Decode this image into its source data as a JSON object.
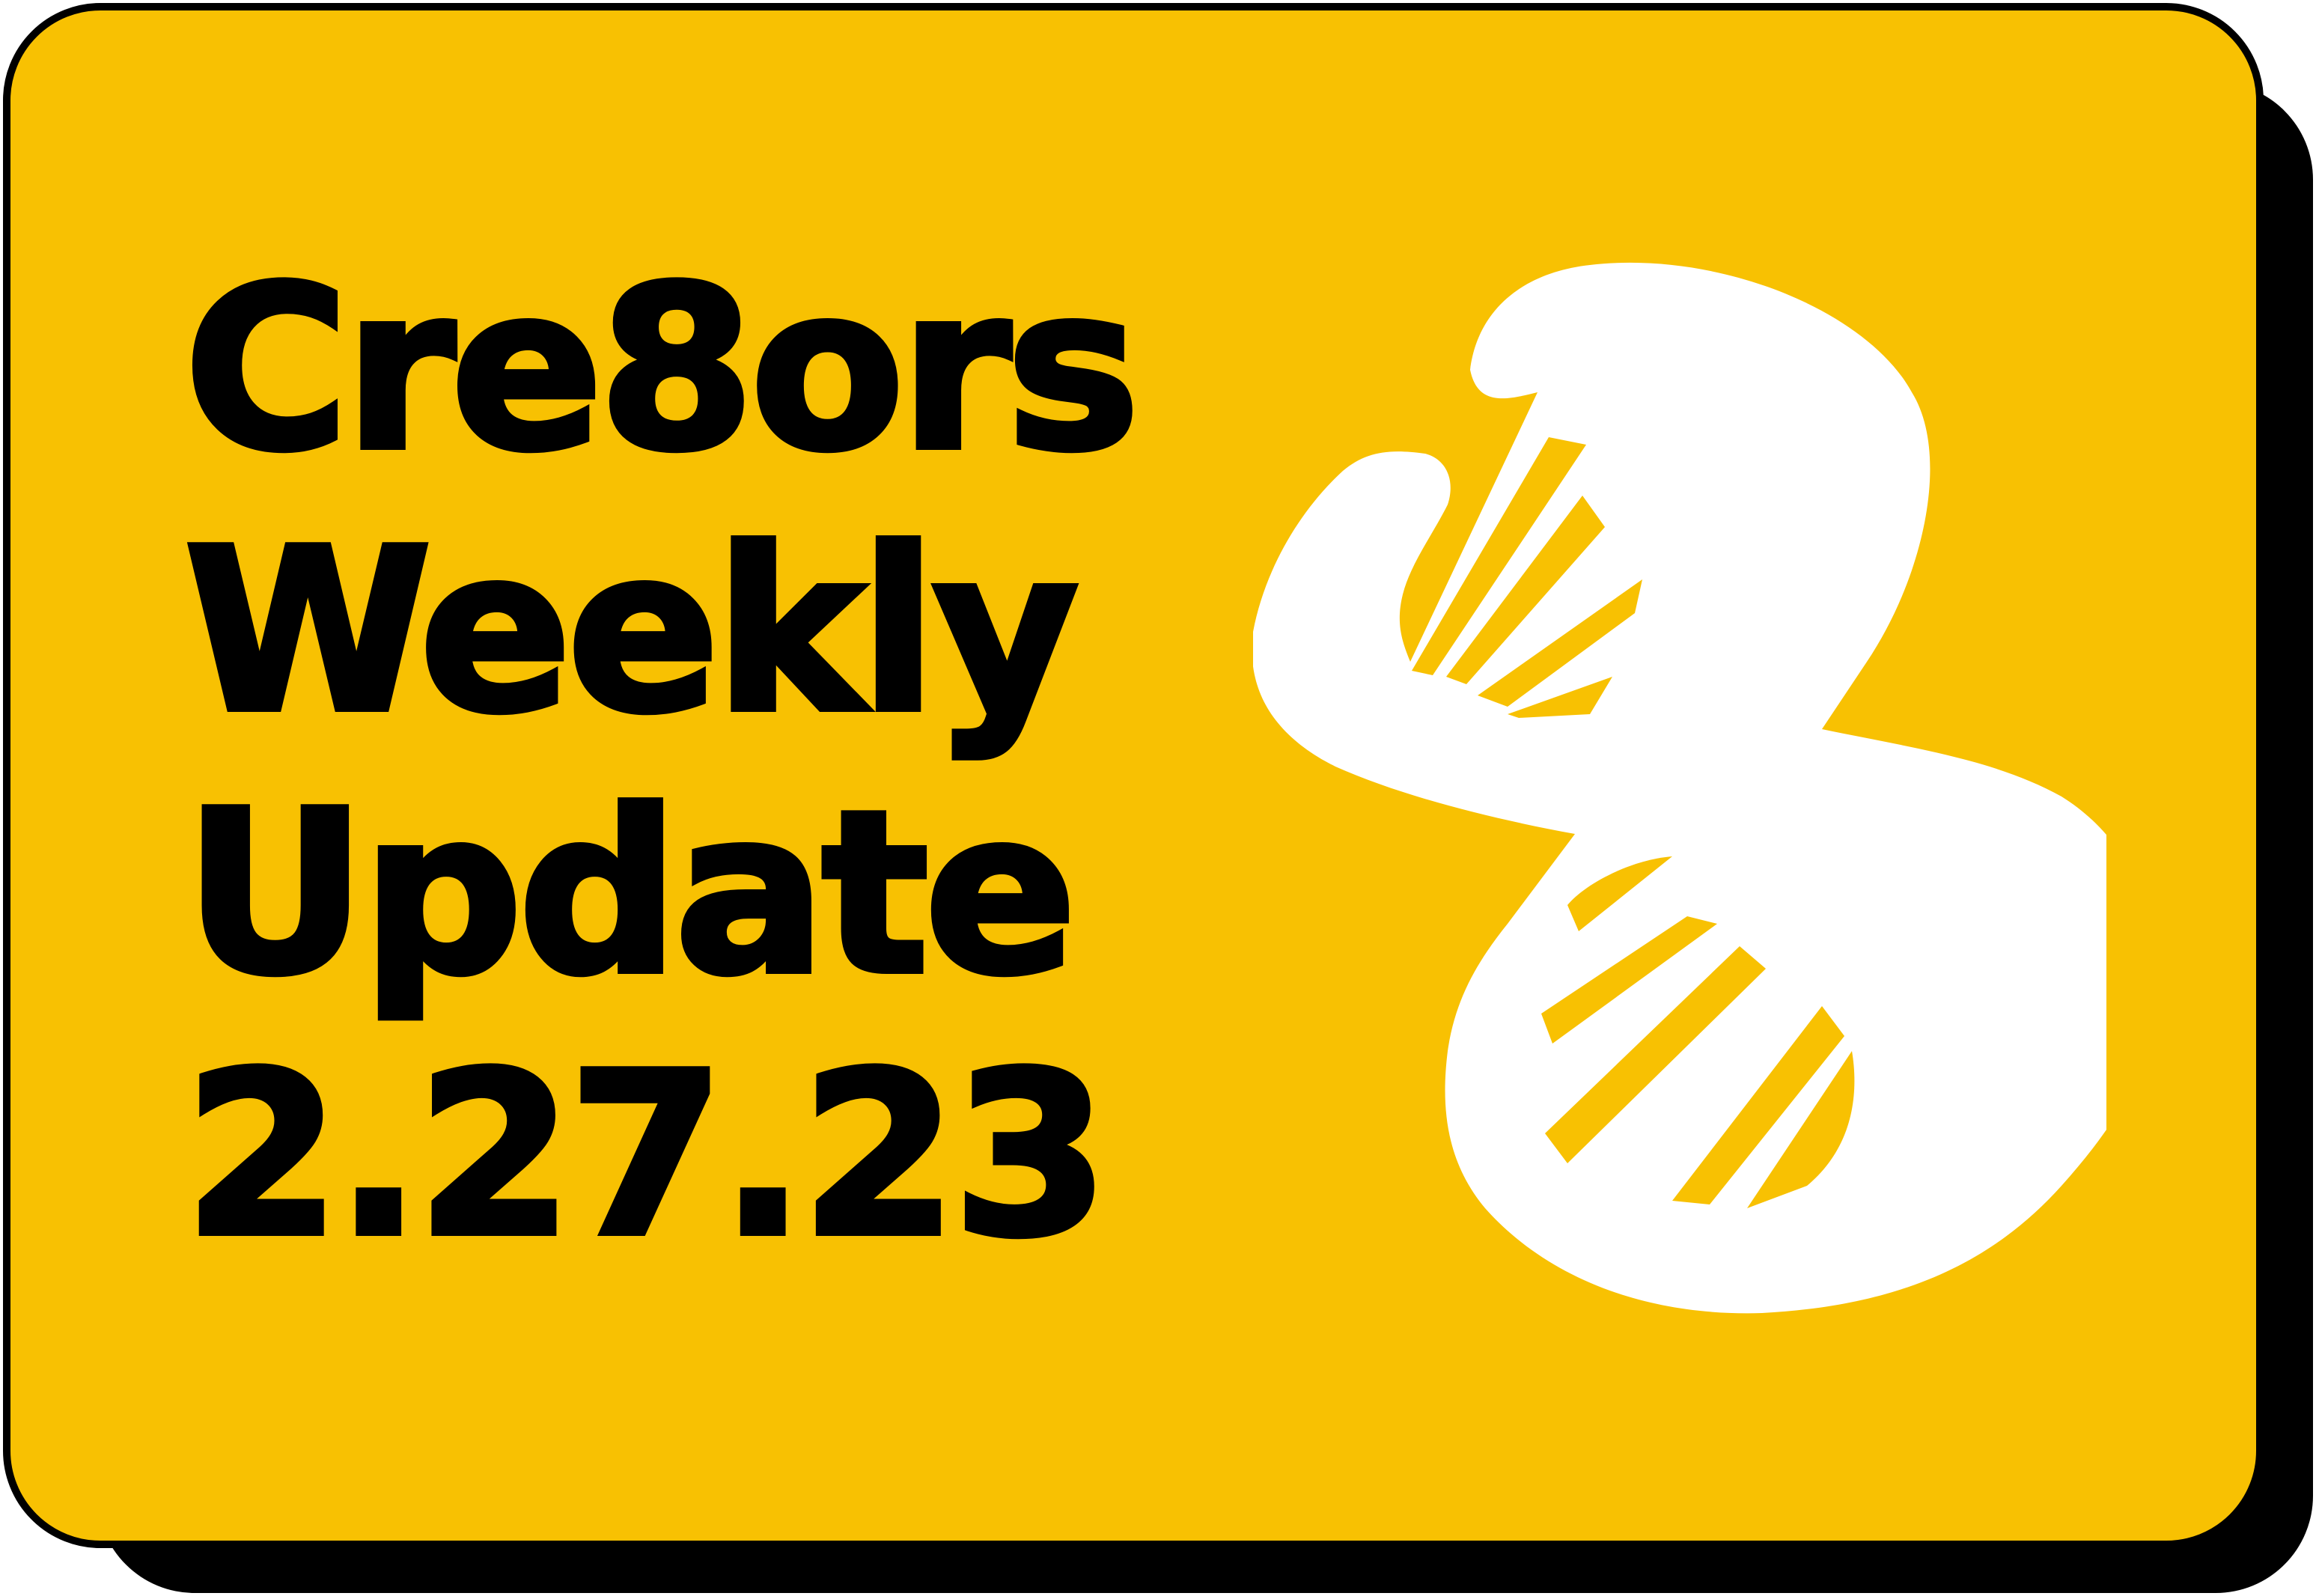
{
  "card": {
    "background_color": "#F8C102",
    "border_color": "#000000",
    "shadow_color": "#000000"
  },
  "title": {
    "lines": [
      "Cre8ors",
      "Weekly",
      "Update",
      "2.27.23"
    ]
  },
  "logo": {
    "icon": "dna-helix-icon",
    "color": "#FFFFFF"
  }
}
